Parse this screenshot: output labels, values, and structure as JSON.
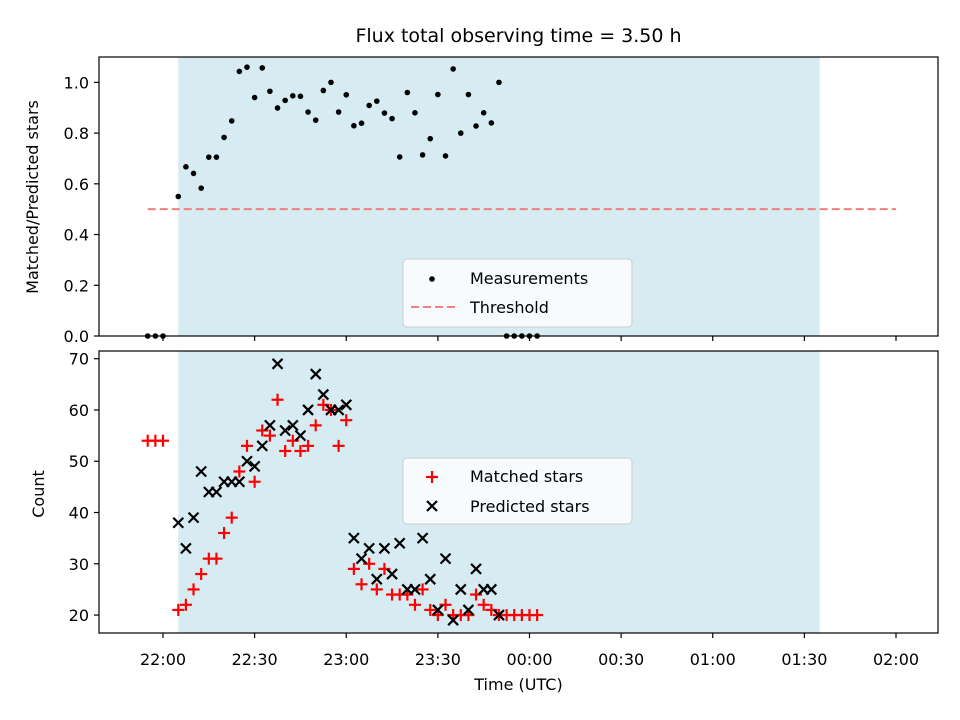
{
  "chart_data": [
    {
      "type": "scatter",
      "title": "Flux total observing time = 3.50 h",
      "ylabel": "Matched/Predicted stars",
      "xlabel": "",
      "ylim": [
        0,
        1.1
      ],
      "yticks": [
        "0.0",
        "0.2",
        "0.4",
        "0.6",
        "0.8",
        "1.0"
      ],
      "shaded_region": {
        "x_start": "22:05",
        "x_end": "01:35",
        "color": "#add8e6"
      },
      "threshold": {
        "name": "Threshold",
        "value": 0.5,
        "x_start": "21:55",
        "x_end": "02:00",
        "color": "#f08080",
        "style": "dashed"
      },
      "legend_position": "lower-center",
      "series": [
        {
          "name": "Measurements",
          "marker": "dot",
          "color": "#000000",
          "points": [
            [
              "21:55",
              0.0
            ],
            [
              "21:57.5",
              0.0
            ],
            [
              "22:00",
              0.0
            ],
            [
              "22:05",
              0.55
            ],
            [
              "22:07.5",
              0.667
            ],
            [
              "22:10",
              0.641
            ],
            [
              "22:12.5",
              0.583
            ],
            [
              "22:15",
              0.705
            ],
            [
              "22:17.5",
              0.705
            ],
            [
              "22:20",
              0.783
            ],
            [
              "22:22.5",
              0.848
            ],
            [
              "22:25",
              1.043
            ],
            [
              "22:27.5",
              1.06
            ],
            [
              "22:30",
              0.94
            ],
            [
              "22:32.5",
              1.057
            ],
            [
              "22:35",
              0.965
            ],
            [
              "22:37.5",
              0.899
            ],
            [
              "22:40",
              0.929
            ],
            [
              "22:42.5",
              0.947
            ],
            [
              "22:45",
              0.945
            ],
            [
              "22:47.5",
              0.883
            ],
            [
              "22:50",
              0.851
            ],
            [
              "22:52.5",
              0.968
            ],
            [
              "22:55",
              1.0
            ],
            [
              "22:57.5",
              0.883
            ],
            [
              "23:00",
              0.951
            ],
            [
              "23:02.5",
              0.829
            ],
            [
              "23:05",
              0.839
            ],
            [
              "23:07.5",
              0.909
            ],
            [
              "23:10",
              0.926
            ],
            [
              "23:12.5",
              0.879
            ],
            [
              "23:15",
              0.857
            ],
            [
              "23:17.5",
              0.706
            ],
            [
              "23:20",
              0.96
            ],
            [
              "23:22.5",
              0.88
            ],
            [
              "23:25",
              0.714
            ],
            [
              "23:27.5",
              0.778
            ],
            [
              "23:30",
              0.952
            ],
            [
              "23:32.5",
              0.71
            ],
            [
              "23:35",
              1.053
            ],
            [
              "23:37.5",
              0.8
            ],
            [
              "23:40",
              0.952
            ],
            [
              "23:42.5",
              0.828
            ],
            [
              "23:45",
              0.88
            ],
            [
              "23:47.5",
              0.84
            ],
            [
              "23:50",
              1.0
            ],
            [
              "23:52.5",
              0.0
            ],
            [
              "23:55",
              0.0
            ],
            [
              "23:57.5",
              0.0
            ],
            [
              "00:00",
              0.0
            ],
            [
              "00:02.5",
              0.0
            ]
          ]
        }
      ]
    },
    {
      "type": "scatter",
      "title": "",
      "ylabel": "Count",
      "xlabel": "Time (UTC)",
      "ylim": [
        16.5,
        71.5
      ],
      "yticks": [
        "20",
        "30",
        "40",
        "50",
        "60",
        "70"
      ],
      "xticks": [
        "22:00",
        "22:30",
        "23:00",
        "23:30",
        "00:00",
        "00:30",
        "01:00",
        "01:30",
        "02:00"
      ],
      "shaded_region": {
        "x_start": "22:05",
        "x_end": "01:35",
        "color": "#add8e6"
      },
      "legend_position": "center",
      "series": [
        {
          "name": "Matched stars",
          "marker": "plus",
          "color": "#ff0000",
          "x_minutes": [
            -5,
            -2.5,
            0,
            5,
            7.5,
            10,
            12.5,
            15,
            17.5,
            20,
            22.5,
            25,
            27.5,
            30,
            32.5,
            35,
            37.5,
            40,
            42.5,
            45,
            47.5,
            50,
            52.5,
            55,
            57.5,
            60,
            62.5,
            65,
            67.5,
            70,
            72.5,
            75,
            77.5,
            80,
            82.5,
            85,
            87.5,
            90,
            92.5,
            95,
            97.5,
            100,
            102.5,
            105,
            107.5,
            110,
            112.5,
            115,
            117.5,
            120,
            122.5
          ],
          "values": [
            54,
            54,
            54,
            21,
            22,
            25,
            28,
            31,
            31,
            36,
            39,
            48,
            53,
            46,
            56,
            55,
            62,
            52,
            54,
            52,
            53,
            57,
            61,
            60,
            53,
            58,
            29,
            26,
            30,
            25,
            29,
            24,
            24,
            24,
            22,
            25,
            21,
            20,
            22,
            20,
            20,
            20,
            24,
            22,
            21,
            20,
            20,
            20,
            20,
            20,
            20
          ]
        },
        {
          "name": "Predicted stars",
          "marker": "x",
          "color": "#000000",
          "x_minutes": [
            5,
            7.5,
            10,
            12.5,
            15,
            17.5,
            20,
            22.5,
            25,
            27.5,
            30,
            32.5,
            35,
            37.5,
            40,
            42.5,
            45,
            47.5,
            50,
            52.5,
            55,
            57.5,
            60,
            62.5,
            65,
            67.5,
            70,
            72.5,
            75,
            77.5,
            80,
            82.5,
            85,
            87.5,
            90,
            92.5,
            95,
            97.5,
            100,
            102.5,
            105,
            107.5,
            110
          ],
          "values": [
            38,
            33,
            39,
            48,
            44,
            44,
            46,
            46,
            46,
            50,
            49,
            53,
            57,
            69,
            56,
            57,
            55,
            60,
            67,
            63,
            60,
            60,
            61,
            35,
            31,
            33,
            27,
            33,
            28,
            34,
            25,
            25,
            35,
            27,
            21,
            31,
            19,
            25,
            21,
            29,
            25,
            25,
            20
          ]
        }
      ]
    }
  ]
}
